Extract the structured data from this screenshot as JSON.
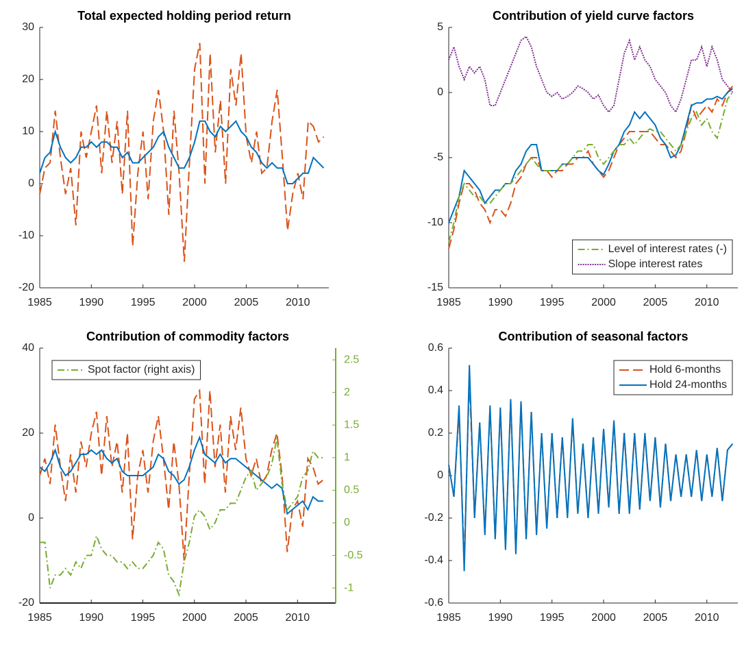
{
  "chart_data": [
    {
      "type": "line",
      "title": "Total expected holding period return",
      "x": [
        1985,
        1985.5,
        1986,
        1986.5,
        1987,
        1987.5,
        1988,
        1988.5,
        1989,
        1989.5,
        1990,
        1990.5,
        1991,
        1991.5,
        1992,
        1992.5,
        1993,
        1993.5,
        1994,
        1994.5,
        1995,
        1995.5,
        1996,
        1996.5,
        1997,
        1997.5,
        1998,
        1998.5,
        1999,
        1999.5,
        2000,
        2000.5,
        2001,
        2001.5,
        2002,
        2002.5,
        2003,
        2003.5,
        2004,
        2004.5,
        2005,
        2005.5,
        2006,
        2006.5,
        2007,
        2007.5,
        2008,
        2008.5,
        2009,
        2009.5,
        2010,
        2010.5,
        2011,
        2011.5,
        2012,
        2012.5
      ],
      "xlim": [
        1985,
        2013
      ],
      "xticks": [
        1985,
        1990,
        1995,
        2000,
        2005,
        2010
      ],
      "ylim": [
        -20,
        30
      ],
      "yticks": [
        -20,
        -10,
        0,
        10,
        20,
        30
      ],
      "series": [
        {
          "color": "#D95319",
          "linestyle": "dashed",
          "values": [
            -2,
            3,
            4,
            14,
            5,
            -2,
            3,
            -8,
            10,
            5,
            10,
            15,
            2,
            14,
            4,
            12,
            -2,
            14,
            -12,
            2,
            10,
            -3,
            12,
            18,
            10,
            -6,
            14,
            2,
            -15,
            4,
            22,
            27,
            0,
            25,
            6,
            16,
            0,
            22,
            15,
            25,
            9,
            4,
            10,
            2,
            3,
            12,
            18,
            5,
            -9,
            -2,
            2,
            -3,
            12,
            11,
            8,
            9
          ]
        },
        {
          "color": "#0072BD",
          "linestyle": "solid",
          "values": [
            2,
            5,
            6,
            10,
            7,
            5,
            4,
            5,
            7,
            7,
            8,
            7,
            8,
            8,
            7,
            7,
            5,
            6,
            4,
            4,
            5,
            6,
            7,
            9,
            10,
            7,
            5,
            3,
            3,
            5,
            8,
            12,
            12,
            10,
            9,
            11,
            10,
            11,
            12,
            10,
            9,
            7,
            6,
            4,
            3,
            4,
            3,
            3,
            0,
            0,
            1,
            2,
            2,
            5,
            4,
            3
          ]
        }
      ]
    },
    {
      "type": "line",
      "title": "Contribution of yield curve factors",
      "x": [
        1985,
        1985.5,
        1986,
        1986.5,
        1987,
        1987.5,
        1988,
        1988.5,
        1989,
        1989.5,
        1990,
        1990.5,
        1991,
        1991.5,
        1992,
        1992.5,
        1993,
        1993.5,
        1994,
        1994.5,
        1995,
        1995.5,
        1996,
        1996.5,
        1997,
        1997.5,
        1998,
        1998.5,
        1999,
        1999.5,
        2000,
        2000.5,
        2001,
        2001.5,
        2002,
        2002.5,
        2003,
        2003.5,
        2004,
        2004.5,
        2005,
        2005.5,
        2006,
        2006.5,
        2007,
        2007.5,
        2008,
        2008.5,
        2009,
        2009.5,
        2010,
        2010.5,
        2011,
        2011.5,
        2012,
        2012.5
      ],
      "xlim": [
        1985,
        2013
      ],
      "xticks": [
        1985,
        1990,
        1995,
        2000,
        2005,
        2010
      ],
      "ylim": [
        -15,
        5
      ],
      "yticks": [
        -15,
        -10,
        -5,
        0,
        5
      ],
      "legend": "lower right",
      "series": [
        {
          "color": "#D95319",
          "linestyle": "dashed",
          "values": [
            -12,
            -10.5,
            -8.5,
            -7,
            -7,
            -7.5,
            -8.5,
            -9,
            -10,
            -9,
            -9,
            -9.5,
            -8.5,
            -7,
            -6.5,
            -5.5,
            -5,
            -5,
            -6,
            -6,
            -6.5,
            -6,
            -6,
            -5.5,
            -5.5,
            -5,
            -5,
            -4.5,
            -5.5,
            -6,
            -6.5,
            -6,
            -5,
            -4,
            -3.5,
            -3,
            -3,
            -3,
            -3,
            -3,
            -3.5,
            -4,
            -4,
            -4.5,
            -5,
            -4.5,
            -3,
            -1,
            -2,
            -1.5,
            -1,
            -1.5,
            -0.5,
            -1,
            0,
            0.5
          ]
        },
        {
          "color": "#0072BD",
          "linestyle": "solid",
          "values": [
            -10,
            -9,
            -8,
            -6,
            -6.5,
            -7,
            -7.5,
            -8.5,
            -8,
            -7.5,
            -7.5,
            -7,
            -7,
            -6,
            -5.5,
            -4.5,
            -4,
            -4,
            -6,
            -6,
            -6,
            -6,
            -5.5,
            -5.5,
            -5,
            -5,
            -5,
            -5,
            -5.5,
            -6,
            -6.3,
            -5.5,
            -4.5,
            -4,
            -3,
            -2.5,
            -1.5,
            -2,
            -1.5,
            -2,
            -2.5,
            -3.5,
            -4,
            -5,
            -4.8,
            -4,
            -2.5,
            -1,
            -0.8,
            -0.8,
            -0.5,
            -0.5,
            -0.3,
            -0.5,
            0,
            0.3
          ]
        },
        {
          "name": "Level of interest rates (-)",
          "color": "#77AC30",
          "linestyle": "dashdot",
          "values": [
            -11.5,
            -10,
            -8,
            -7,
            -7.5,
            -8,
            -8,
            -8.5,
            -8.5,
            -8,
            -7.5,
            -7,
            -7,
            -6.5,
            -6,
            -5.5,
            -5,
            -5.5,
            -6,
            -6,
            -6,
            -6,
            -5.5,
            -5.5,
            -5,
            -4.5,
            -4.5,
            -4,
            -4,
            -5,
            -5.5,
            -5,
            -4.5,
            -4,
            -4,
            -3.5,
            -4,
            -3.5,
            -3,
            -2.8,
            -3,
            -3,
            -3.5,
            -4,
            -4.5,
            -4,
            -3,
            -2,
            -1.5,
            -2.5,
            -2,
            -3,
            -3.5,
            -2,
            -0.5,
            0
          ]
        },
        {
          "name": "Slope interest rates",
          "color": "#7E2F8E",
          "linestyle": "dotted",
          "values": [
            2.5,
            3.5,
            2,
            1,
            2,
            1.5,
            2,
            1,
            -1,
            -1,
            0,
            1,
            2,
            3,
            4,
            4.3,
            3.5,
            2,
            1,
            0,
            -0.3,
            0,
            -0.5,
            -0.3,
            0,
            0.5,
            0.3,
            0,
            -0.5,
            -0.2,
            -1,
            -1.5,
            -1,
            1,
            3,
            4,
            2.5,
            3.5,
            2.5,
            2,
            1,
            0.5,
            0,
            -1,
            -1.5,
            -0.5,
            1,
            2.5,
            2.5,
            3.5,
            2,
            3.5,
            2.5,
            1,
            0.5,
            0
          ]
        }
      ]
    },
    {
      "type": "line",
      "title": "Contribution of commodity factors",
      "x": [
        1985,
        1985.5,
        1986,
        1986.5,
        1987,
        1987.5,
        1988,
        1988.5,
        1989,
        1989.5,
        1990,
        1990.5,
        1991,
        1991.5,
        1992,
        1992.5,
        1993,
        1993.5,
        1994,
        1994.5,
        1995,
        1995.5,
        1996,
        1996.5,
        1997,
        1997.5,
        1998,
        1998.5,
        1999,
        1999.5,
        2000,
        2000.5,
        2001,
        2001.5,
        2002,
        2002.5,
        2003,
        2003.5,
        2004,
        2004.5,
        2005,
        2005.5,
        2006,
        2006.5,
        2007,
        2007.5,
        2008,
        2008.5,
        2009,
        2009.5,
        2010,
        2010.5,
        2011,
        2011.5,
        2012,
        2012.5
      ],
      "xlim": [
        1985,
        2013.7
      ],
      "xticks": [
        1985,
        1990,
        1995,
        2000,
        2005,
        2010
      ],
      "ylim": [
        -20,
        40
      ],
      "yticks": [
        -20,
        0,
        20,
        40
      ],
      "y2lim": [
        -1.23,
        2.68
      ],
      "y2ticks": [
        -1,
        -0.5,
        0,
        0.5,
        1,
        1.5,
        2,
        2.5
      ],
      "legend": "upper left",
      "series": [
        {
          "color": "#D95319",
          "linestyle": "dashed",
          "values": [
            10,
            14,
            8,
            22,
            12,
            4,
            15,
            6,
            18,
            12,
            20,
            25,
            10,
            24,
            12,
            18,
            6,
            20,
            -5,
            10,
            16,
            6,
            18,
            24,
            14,
            2,
            18,
            8,
            -10,
            10,
            28,
            30,
            8,
            30,
            12,
            22,
            6,
            24,
            16,
            26,
            14,
            10,
            14,
            8,
            10,
            16,
            20,
            10,
            -8,
            2,
            4,
            -2,
            14,
            12,
            8,
            9
          ]
        },
        {
          "color": "#0072BD",
          "linestyle": "solid",
          "values": [
            12,
            11,
            13,
            16,
            12,
            10,
            11,
            13,
            15,
            15,
            16,
            15,
            16,
            14,
            13,
            14,
            11,
            10,
            10,
            10,
            10,
            11,
            12,
            15,
            14,
            11,
            10,
            8,
            9,
            12,
            16,
            19,
            15,
            14,
            13,
            15,
            13,
            14,
            14,
            13,
            12,
            11,
            10,
            9,
            8,
            7,
            8,
            7,
            1,
            2,
            3,
            4,
            2,
            5,
            4,
            4
          ]
        },
        {
          "name": "Spot factor (right axis)",
          "color": "#77AC30",
          "linestyle": "dashdot",
          "axis": "y2",
          "values": [
            -0.3,
            -0.3,
            -1,
            -0.8,
            -0.8,
            -0.7,
            -0.8,
            -0.6,
            -0.7,
            -0.5,
            -0.5,
            -0.2,
            -0.4,
            -0.5,
            -0.5,
            -0.6,
            -0.6,
            -0.7,
            -0.6,
            -0.7,
            -0.7,
            -0.6,
            -0.5,
            -0.3,
            -0.4,
            -0.8,
            -0.9,
            -1.1,
            -0.6,
            -0.3,
            0.1,
            0.2,
            0.1,
            -0.1,
            0,
            0.2,
            0.2,
            0.3,
            0.3,
            0.5,
            0.7,
            0.8,
            0.5,
            0.6,
            0.7,
            0.9,
            1.3,
            0.6,
            0.2,
            0.3,
            0.4,
            0.7,
            0.8,
            1.1,
            1.0,
            1.0
          ]
        }
      ]
    },
    {
      "type": "line",
      "title": "Contribution of seasonal factors",
      "x": [
        1985,
        1985.5,
        1986,
        1986.5,
        1987,
        1987.5,
        1988,
        1988.5,
        1989,
        1989.5,
        1990,
        1990.5,
        1991,
        1991.5,
        1992,
        1992.5,
        1993,
        1993.5,
        1994,
        1994.5,
        1995,
        1995.5,
        1996,
        1996.5,
        1997,
        1997.5,
        1998,
        1998.5,
        1999,
        1999.5,
        2000,
        2000.5,
        2001,
        2001.5,
        2002,
        2002.5,
        2003,
        2003.5,
        2004,
        2004.5,
        2005,
        2005.5,
        2006,
        2006.5,
        2007,
        2007.5,
        2008,
        2008.5,
        2009,
        2009.5,
        2010,
        2010.5,
        2011,
        2011.5,
        2012,
        2012.5
      ],
      "xlim": [
        1985,
        2013
      ],
      "xticks": [
        1985,
        1990,
        1995,
        2000,
        2005,
        2010
      ],
      "ylim": [
        -0.6,
        0.6
      ],
      "yticks": [
        -0.6,
        -0.4,
        -0.2,
        0,
        0.2,
        0.4,
        0.6
      ],
      "legend": "upper right",
      "series": [
        {
          "name": "Hold 6-months",
          "color": "#D95319",
          "linestyle": "dashed",
          "values": [
            0.05,
            -0.1,
            0.3,
            -0.4,
            0.46,
            -0.2,
            0.25,
            -0.27,
            0.32,
            -0.3,
            0.32,
            -0.34,
            0.35,
            -0.36,
            0.34,
            -0.3,
            0.3,
            -0.27,
            0.2,
            -0.24,
            0.2,
            -0.2,
            0.18,
            -0.19,
            0.26,
            -0.18,
            0.15,
            -0.2,
            0.18,
            -0.17,
            0.22,
            -0.15,
            0.25,
            -0.18,
            0.2,
            -0.17,
            0.2,
            -0.16,
            0.19,
            -0.12,
            0.18,
            -0.15,
            0.15,
            -0.12,
            0.1,
            -0.1,
            0.1,
            -0.1,
            0.12,
            -0.12,
            0.1,
            -0.1,
            0.13,
            -0.12,
            0.12,
            0.15
          ]
        },
        {
          "name": "Hold 24-months",
          "color": "#0072BD",
          "linestyle": "solid",
          "values": [
            0.05,
            -0.1,
            0.33,
            -0.45,
            0.52,
            -0.2,
            0.25,
            -0.28,
            0.33,
            -0.3,
            0.32,
            -0.35,
            0.36,
            -0.37,
            0.35,
            -0.3,
            0.3,
            -0.28,
            0.2,
            -0.25,
            0.2,
            -0.2,
            0.18,
            -0.2,
            0.27,
            -0.18,
            0.15,
            -0.2,
            0.18,
            -0.18,
            0.22,
            -0.15,
            0.26,
            -0.18,
            0.2,
            -0.18,
            0.2,
            -0.16,
            0.2,
            -0.12,
            0.18,
            -0.15,
            0.15,
            -0.12,
            0.1,
            -0.1,
            0.1,
            -0.1,
            0.12,
            -0.12,
            0.1,
            -0.1,
            0.13,
            -0.12,
            0.12,
            0.15
          ]
        }
      ]
    }
  ]
}
